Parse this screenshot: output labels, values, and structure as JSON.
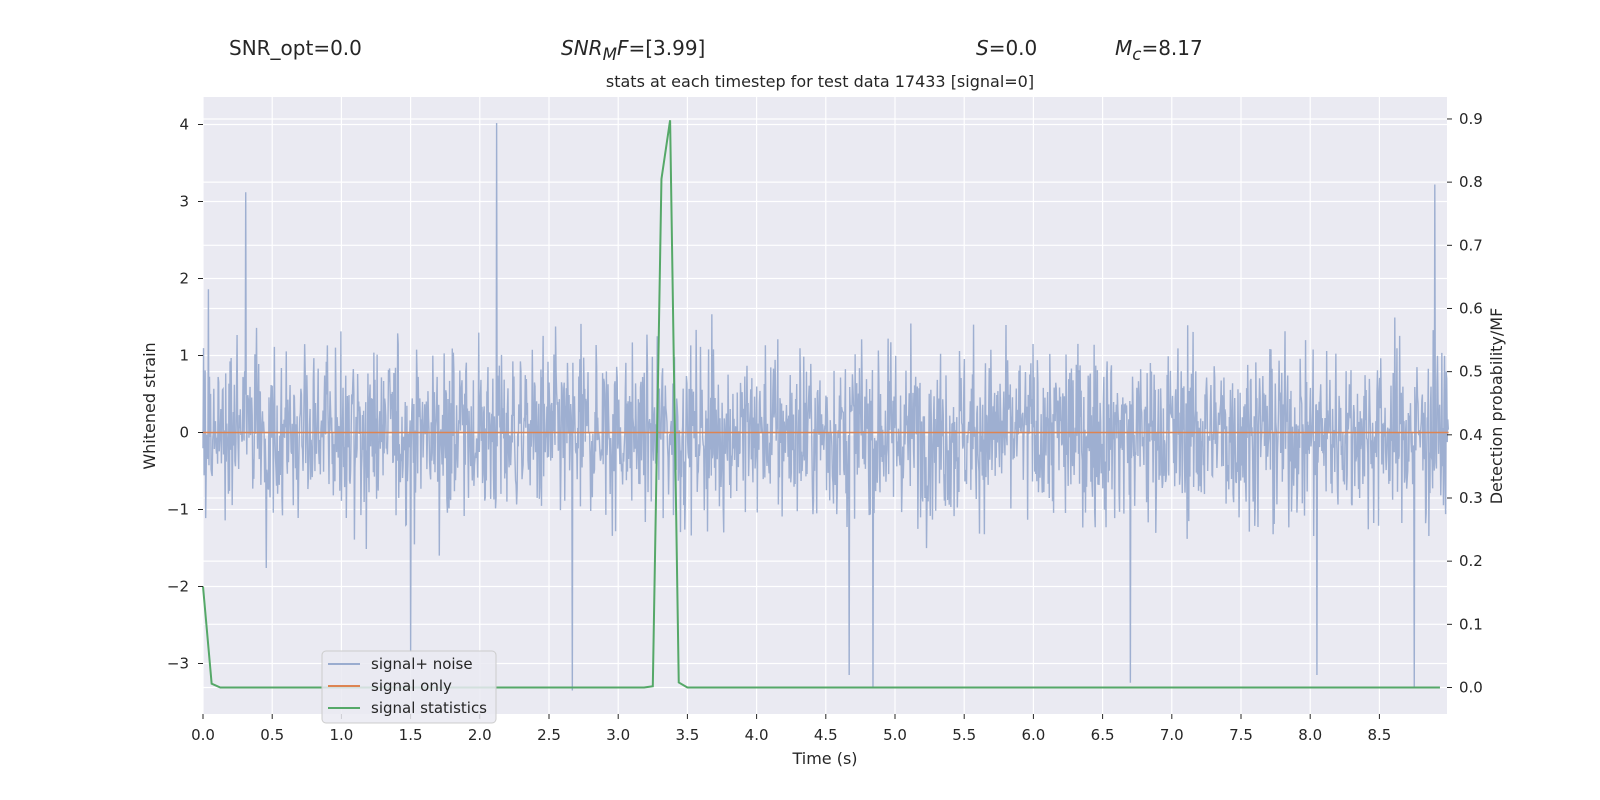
{
  "header": {
    "snr_opt": "SNR_opt=0.0",
    "snr_mf_base": "SNR",
    "snr_mf_sub": "M",
    "snr_mf_f": "F",
    "snr_mf_value": "=[3.99]",
    "s_symbol": "S",
    "s_value": "=0.0",
    "mc_symbol": "M",
    "mc_sub": "c",
    "mc_value": "=8.17"
  },
  "chart_data": {
    "type": "line",
    "title": "stats at each timestep for test data 17433 [signal=0]",
    "xlabel": "Time (s)",
    "ylabel_left": "Whitened strain",
    "ylabel_right": "Detection probability/MF",
    "xlim": [
      0.0,
      9.0
    ],
    "ylim_left": [
      -3.7,
      4.35
    ],
    "ylim_right": [
      -0.045,
      0.925
    ],
    "x_ticks": [
      "0.0",
      "0.5",
      "1.0",
      "1.5",
      "2.0",
      "2.5",
      "3.0",
      "3.5",
      "4.0",
      "4.5",
      "5.0",
      "5.5",
      "6.0",
      "6.5",
      "7.0",
      "7.5",
      "8.0",
      "8.5"
    ],
    "y_left_ticks": [
      "−3",
      "−2",
      "−1",
      "0",
      "1",
      "2",
      "3",
      "4"
    ],
    "y_right_ticks": [
      "0.0",
      "0.1",
      "0.2",
      "0.3",
      "0.4",
      "0.5",
      "0.6",
      "0.7",
      "0.8",
      "0.9"
    ],
    "grid": true,
    "legend_position": "lower-left",
    "series": [
      {
        "name": "signal+ noise",
        "axis": "left",
        "color": "#9aaccf",
        "description": "dense whitened strain noise, envelope roughly ±2",
        "peaks": [
          {
            "x": 0.31,
            "y": 3.12
          },
          {
            "x": 2.12,
            "y": 4.02
          },
          {
            "x": 8.9,
            "y": 3.22
          },
          {
            "x": 2.67,
            "y": -3.35
          },
          {
            "x": 4.84,
            "y": -3.3
          },
          {
            "x": 6.7,
            "y": -3.25
          },
          {
            "x": 8.05,
            "y": -3.15
          },
          {
            "x": 8.75,
            "y": -3.3
          },
          {
            "x": 1.5,
            "y": -2.85
          },
          {
            "x": 4.67,
            "y": -3.15
          }
        ]
      },
      {
        "name": "signal only",
        "axis": "left",
        "color": "#dd8452",
        "x": [
          0.0,
          9.0
        ],
        "y": [
          0.0,
          0.0
        ]
      },
      {
        "name": "signal statistics",
        "axis": "right",
        "color": "#55a868",
        "x": [
          0.0,
          0.0625,
          0.125,
          3.1875,
          3.25,
          3.3125,
          3.375,
          3.4375,
          3.5,
          8.9375
        ],
        "y": [
          0.16,
          0.006,
          0.0,
          0.0,
          0.002,
          0.805,
          0.898,
          0.008,
          0.0,
          0.0
        ]
      }
    ]
  }
}
